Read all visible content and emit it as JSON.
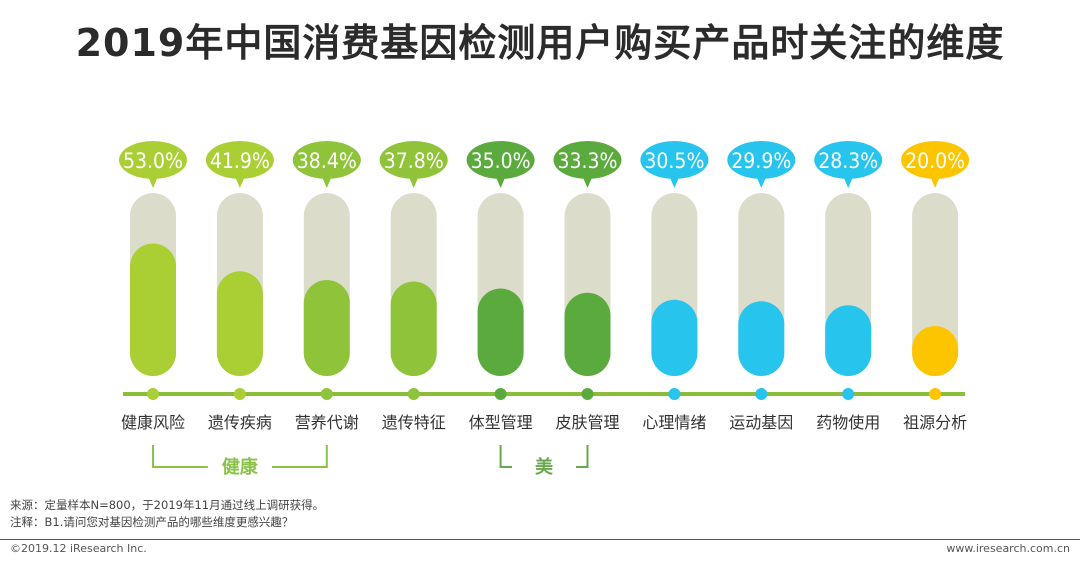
{
  "title": "2019年中国消费基因检测用户购买产品时关注的维度",
  "chart_data": {
    "type": "bar",
    "title": "2019年中国消费基因检测用户购买产品时关注的维度",
    "categories": [
      "健康风险",
      "遗传疾病",
      "营养代谢",
      "遗传特征",
      "体型管理",
      "皮肤管理",
      "心理情绪",
      "运动基因",
      "药物使用",
      "祖源分析"
    ],
    "values": [
      53.0,
      41.9,
      38.4,
      37.8,
      35.0,
      33.3,
      30.5,
      29.9,
      28.3,
      20.0
    ],
    "value_labels": [
      "53.0%",
      "41.9%",
      "38.4%",
      "37.8%",
      "35.0%",
      "33.3%",
      "30.5%",
      "29.9%",
      "28.3%",
      "20.0%"
    ],
    "unit": "%",
    "ylim": [
      0,
      100
    ],
    "bar_colors": [
      "#aacf34",
      "#aacf34",
      "#8fc43a",
      "#8fc43a",
      "#5aaa3d",
      "#5aaa3d",
      "#27c4ee",
      "#27c4ee",
      "#27c4ee",
      "#fdc500"
    ],
    "track_color": "#dcdccb",
    "axis_color": "#8bbd3a",
    "groups": [
      {
        "label": "健康",
        "from": 0,
        "to": 2,
        "color": "#8bc34a"
      },
      {
        "label": "美",
        "from": 4,
        "to": 5,
        "color": "#6aa84f"
      }
    ]
  },
  "notes": {
    "source": "来源：定量样本N=800，于2019年11月通过线上调研获得。",
    "note": "注释：B1.请问您对基因检测产品的哪些维度更感兴趣？"
  },
  "footer": {
    "copyright": "©2019.12 iResearch Inc.",
    "website": "www.iresearch.com.cn"
  }
}
